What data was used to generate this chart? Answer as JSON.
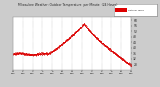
{
  "bg_color": "#cccccc",
  "plot_bg_color": "#ffffff",
  "line_color": "#dd0000",
  "ylim": [
    24,
    62
  ],
  "yticks": [
    28,
    32,
    36,
    40,
    44,
    48,
    52,
    56,
    60
  ],
  "xlim": [
    0,
    1440
  ],
  "legend_color": "#dd0000",
  "legend_bg": "#ffffff",
  "marker_size": 0.8,
  "temp_profile": {
    "flat_start": 35.5,
    "flat_end_minute": 420,
    "rise_start": 420,
    "peak_temp": 57.5,
    "peak_minute": 870,
    "drop_end_temp": 27.0,
    "drop_end_minute": 1440
  }
}
